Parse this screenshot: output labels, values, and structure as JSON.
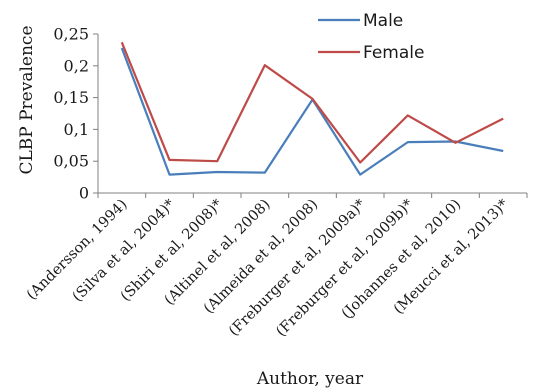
{
  "chart_data": {
    "type": "line",
    "categories": [
      "(Andersson, 1994)",
      "(Silva et al, 2004)*",
      "(Shiri et al, 2008)*",
      "(Altinel et al, 2008)",
      "(Almeida et al, 2008)",
      "(Freburger et al, 2009a)*",
      "(Freburger et al, 2009b)*",
      "(Johannes et al, 2010)",
      "(Meucci et al, 2013)*"
    ],
    "series": [
      {
        "name": "Male",
        "color": "#4a7ebb",
        "values": [
          0.228,
          0.029,
          0.033,
          0.032,
          0.147,
          0.029,
          0.08,
          0.081,
          0.066
        ]
      },
      {
        "name": "Female",
        "color": "#be4b48",
        "values": [
          0.237,
          0.052,
          0.05,
          0.201,
          0.148,
          0.048,
          0.122,
          0.079,
          0.117
        ]
      }
    ],
    "yticks": [
      "0",
      "0,05",
      "0,1",
      "0,15",
      "0,2",
      "0,25"
    ],
    "ylim": [
      0,
      0.25
    ],
    "xlabel": "Author, year",
    "ylabel": "CLBP Prevalence",
    "legend_position": "top-right",
    "grid": false
  }
}
